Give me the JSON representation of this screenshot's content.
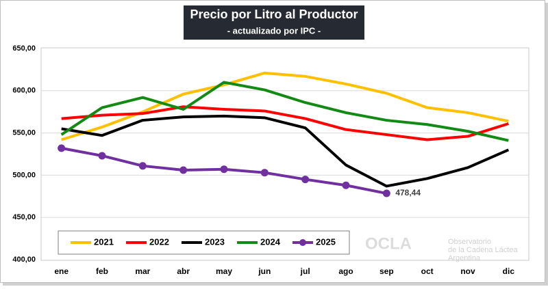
{
  "chart_data": {
    "type": "line",
    "title": "Precio por Litro al Productor",
    "subtitle": "- actualizado por IPC -",
    "categories": [
      "ene",
      "feb",
      "mar",
      "abr",
      "may",
      "jun",
      "jul",
      "ago",
      "sep",
      "oct",
      "nov",
      "dic"
    ],
    "series": [
      {
        "name": "2021",
        "color": "#ffc000",
        "values": [
          542,
          557,
          575,
          596,
          607,
          621,
          617,
          608,
          597,
          580,
          574,
          564
        ]
      },
      {
        "name": "2022",
        "color": "#ff0000",
        "values": [
          567,
          571,
          573,
          581,
          578,
          576,
          567,
          554,
          548,
          542,
          546,
          561
        ]
      },
      {
        "name": "2023",
        "color": "#000000",
        "values": [
          555,
          547,
          565,
          569,
          570,
          568,
          556,
          512,
          487,
          496,
          509,
          530
        ]
      },
      {
        "name": "2024",
        "color": "#138a13",
        "values": [
          548,
          580,
          592,
          578,
          610,
          601,
          586,
          574,
          565,
          560,
          552,
          541
        ]
      },
      {
        "name": "2025",
        "color": "#7030a0",
        "markers": true,
        "values": [
          532,
          523,
          511,
          506,
          507,
          503,
          495,
          488,
          478.44,
          null,
          null,
          null
        ],
        "value_labels": [
          null,
          null,
          null,
          null,
          null,
          null,
          null,
          null,
          "478,44",
          null,
          null,
          null
        ]
      }
    ],
    "ylim": [
      400,
      650
    ],
    "yticks": [
      {
        "value": 400,
        "label": "400,00"
      },
      {
        "value": 450,
        "label": "450,00"
      },
      {
        "value": 500,
        "label": "500,00"
      },
      {
        "value": 550,
        "label": "550,00"
      },
      {
        "value": 600,
        "label": "600,00"
      },
      {
        "value": 650,
        "label": "650,00"
      }
    ],
    "grid": true,
    "legend": "lower left"
  },
  "watermark": {
    "name": "OCLA",
    "lines": [
      "Observatorio",
      "de la Cadena Láctea",
      "Argentina"
    ]
  }
}
